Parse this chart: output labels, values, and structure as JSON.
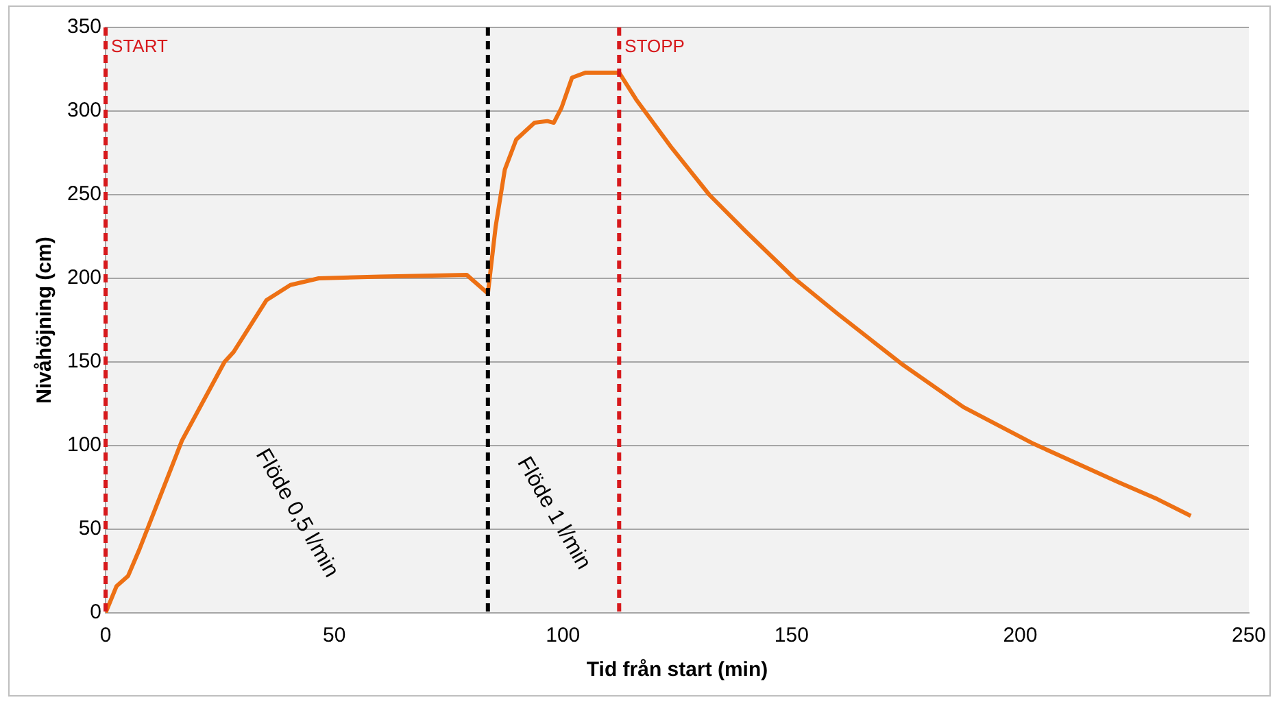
{
  "chart_data": {
    "type": "line",
    "xlabel": "Tid från start (min)",
    "ylabel": "Nivåhöjning (cm)",
    "x": [
      0,
      2.4,
      4.9,
      7.4,
      16.7,
      26,
      28,
      35.2,
      40.4,
      46.6,
      60,
      79,
      83.6,
      85.3,
      87.3,
      89.8,
      93.8,
      96.6,
      98,
      99.7,
      102,
      105,
      112.3,
      116,
      123.8,
      132,
      140,
      150.6,
      160,
      174,
      187.6,
      203,
      221.6,
      230,
      237.3
    ],
    "series": [
      {
        "color": "#ed7014",
        "values": [
          0,
          16,
          22,
          38,
          103,
          150,
          156,
          187,
          196,
          200,
          201,
          202,
          191,
          231,
          265,
          283,
          293,
          294,
          293,
          302,
          320,
          323,
          323,
          307,
          278,
          250,
          228,
          200,
          179,
          149,
          123,
          101,
          78,
          68,
          58
        ]
      }
    ],
    "xlim": [
      0,
      250
    ],
    "xticks": [
      0,
      50,
      100,
      150,
      200,
      250
    ],
    "ylim": [
      0,
      350
    ],
    "yticks": [
      0,
      50,
      100,
      150,
      200,
      250,
      300,
      350
    ],
    "grid": "y",
    "legend": false,
    "marker": "none",
    "line_style": "solid",
    "ref_lines": [
      {
        "axis": "x",
        "value": 0,
        "label": "START",
        "color": "#d7191c",
        "line_style": "dashed"
      },
      {
        "axis": "x",
        "value": 83.6,
        "label": null,
        "color": "#000000",
        "line_style": "dashed"
      },
      {
        "axis": "x",
        "value": 112.3,
        "label": "STOPP",
        "color": "#d7191c",
        "line_style": "dashed"
      }
    ],
    "annotations": [
      "Flöde 0,5 l/min",
      "Flöde 1 l/min"
    ]
  }
}
